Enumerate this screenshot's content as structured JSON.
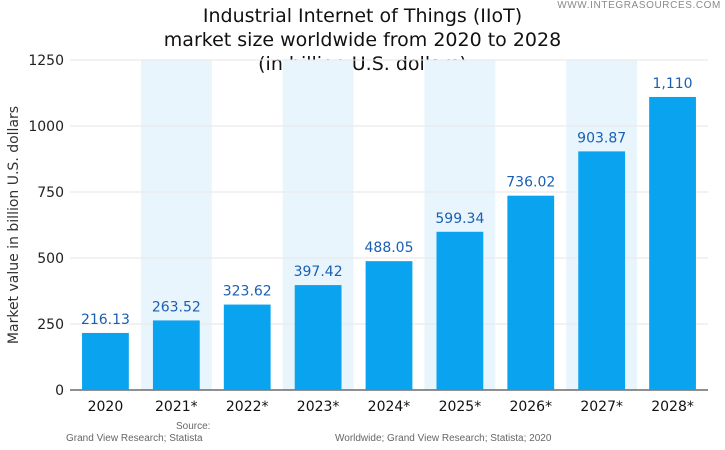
{
  "watermark": "WWW.INTEGRASOURCES.COM",
  "source": {
    "label": "Source:",
    "left": "Grand View Research; Statista",
    "right": "Worldwide; Grand View Research; Statista; 2020"
  },
  "colors": {
    "bar": "#0aa3f0",
    "label": "#1a5fb4",
    "band": "#e9f5fd",
    "grid": "#e6e6e6"
  },
  "chart_data": {
    "type": "bar",
    "title": [
      "Industrial Internet of Things (IIoT)",
      "market size worldwide from 2020 to 2028",
      "(in billion U.S. dollars)"
    ],
    "xlabel": "",
    "ylabel": "Market value in billion U.S. dollars",
    "categories": [
      "2020",
      "2021*",
      "2022*",
      "2023*",
      "2024*",
      "2025*",
      "2026*",
      "2027*",
      "2028*"
    ],
    "values": [
      216.13,
      263.52,
      323.62,
      397.42,
      488.05,
      599.34,
      736.02,
      903.87,
      1110
    ],
    "data_labels": [
      "216.13",
      "263.52",
      "323.62",
      "397.42",
      "488.05",
      "599.34",
      "736.02",
      "903.87",
      "1,110"
    ],
    "ylim": [
      0,
      1250
    ],
    "yticks": [
      "0",
      "250",
      "500",
      "750",
      "1000",
      "1250"
    ],
    "grid": true,
    "legend": "none"
  }
}
